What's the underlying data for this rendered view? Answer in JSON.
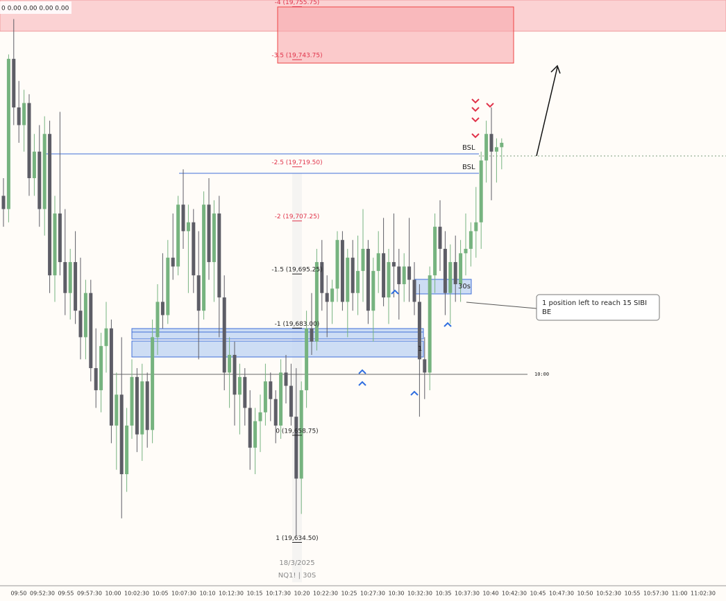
{
  "chart_data": {
    "type": "candlestick",
    "status_text": "0 0.00 0.00 0.00 0.00",
    "ylim": [
      19623.75,
      19756
    ],
    "up_color": "#76b37f",
    "down_color": "#5d5d66",
    "candles": [
      [
        19712,
        19716,
        19705,
        19709
      ],
      [
        19709,
        19744,
        19706,
        19743
      ],
      [
        19743,
        19752,
        19728,
        19732
      ],
      [
        19732,
        19738,
        19724,
        19728
      ],
      [
        19728,
        19736,
        19722,
        19733
      ],
      [
        19733,
        19735,
        19712,
        19716
      ],
      [
        19716,
        19726,
        19712,
        19722
      ],
      [
        19722,
        19728,
        19705,
        19709
      ],
      [
        19709,
        19730,
        19703,
        19726
      ],
      [
        19726,
        19729,
        19690,
        19694
      ],
      [
        19694,
        19712,
        19688,
        19708
      ],
      [
        19708,
        19731,
        19694,
        19697
      ],
      [
        19697,
        19709,
        19685,
        19690
      ],
      [
        19690,
        19700,
        19684,
        19697
      ],
      [
        19697,
        19704,
        19683,
        19686
      ],
      [
        19686,
        19698,
        19675,
        19680
      ],
      [
        19680,
        19693,
        19675,
        19690
      ],
      [
        19690,
        19693,
        19670,
        19673
      ],
      [
        19673,
        19682,
        19664,
        19668
      ],
      [
        19668,
        19681,
        19663,
        19678
      ],
      [
        19678,
        19688,
        19672,
        19682
      ],
      [
        19682,
        19684,
        19656,
        19660
      ],
      [
        19660,
        19672,
        19650,
        19667
      ],
      [
        19667,
        19680,
        19639,
        19649
      ],
      [
        19649,
        19664,
        19645,
        19660
      ],
      [
        19660,
        19675,
        19657,
        19671
      ],
      [
        19671,
        19673,
        19654,
        19658
      ],
      [
        19658,
        19674,
        19652,
        19670
      ],
      [
        19670,
        19672,
        19655,
        19659
      ],
      [
        19659,
        19684,
        19656,
        19680
      ],
      [
        19680,
        19692,
        19676,
        19688
      ],
      [
        19688,
        19699,
        19682,
        19685
      ],
      [
        19685,
        19702,
        19683,
        19698
      ],
      [
        19698,
        19708,
        19693,
        19696
      ],
      [
        19696,
        19712,
        19694,
        19710
      ],
      [
        19710,
        19718,
        19700,
        19704
      ],
      [
        19704,
        19710,
        19690,
        19706
      ],
      [
        19706,
        19709,
        19690,
        19694
      ],
      [
        19694,
        19704,
        19675,
        19686
      ],
      [
        19686,
        19713,
        19684,
        19710
      ],
      [
        19710,
        19716,
        19693,
        19697
      ],
      [
        19697,
        19711,
        19688,
        19708
      ],
      [
        19708,
        19712,
        19680,
        19689
      ],
      [
        19689,
        19694,
        19668,
        19672
      ],
      [
        19672,
        19680,
        19664,
        19676
      ],
      [
        19676,
        19679,
        19660,
        19667
      ],
      [
        19667,
        19674,
        19658,
        19671
      ],
      [
        19671,
        19673,
        19660,
        19664
      ],
      [
        19664,
        19668,
        19650,
        19655
      ],
      [
        19655,
        19664,
        19649,
        19661
      ],
      [
        19661,
        19667,
        19654,
        19663
      ],
      [
        19663,
        19674,
        19660,
        19670
      ],
      [
        19670,
        19672,
        19661,
        19666
      ],
      [
        19666,
        19668,
        19656,
        19660
      ],
      [
        19660,
        19675,
        19657,
        19672
      ],
      [
        19672,
        19676,
        19665,
        19669
      ],
      [
        19669,
        19674,
        19660,
        19662
      ],
      [
        19662,
        19673,
        19635,
        19648
      ],
      [
        19648,
        19670,
        19640,
        19668
      ],
      [
        19668,
        19686,
        19664,
        19682
      ],
      [
        19682,
        19690,
        19676,
        19679
      ],
      [
        19679,
        19700,
        19677,
        19697
      ],
      [
        19697,
        19702,
        19686,
        19690
      ],
      [
        19690,
        19694,
        19680,
        19688
      ],
      [
        19688,
        19693,
        19683,
        19691
      ],
      [
        19691,
        19704,
        19688,
        19702
      ],
      [
        19702,
        19704,
        19686,
        19688
      ],
      [
        19688,
        19700,
        19680,
        19698
      ],
      [
        19698,
        19702,
        19686,
        19690
      ],
      [
        19690,
        19703,
        19685,
        19695
      ],
      [
        19695,
        19709,
        19688,
        19700
      ],
      [
        19700,
        19702,
        19683,
        19686
      ],
      [
        19686,
        19698,
        19679,
        19695
      ],
      [
        19695,
        19704,
        19690,
        19699
      ],
      [
        19699,
        19707,
        19687,
        19689
      ],
      [
        19689,
        19700,
        19683,
        19697
      ],
      [
        19697,
        19708,
        19689,
        19696
      ],
      [
        19696,
        19700,
        19684,
        19692
      ],
      [
        19692,
        19699,
        19688,
        19696
      ],
      [
        19696,
        19707,
        19688,
        19693
      ],
      [
        19693,
        19697,
        19685,
        19688
      ],
      [
        19688,
        19692,
        19662,
        19675
      ],
      [
        19675,
        19680,
        19666,
        19672
      ],
      [
        19672,
        19696,
        19668,
        19694
      ],
      [
        19694,
        19708,
        19690,
        19705
      ],
      [
        19705,
        19711,
        19695,
        19700
      ],
      [
        19700,
        19704,
        19685,
        19690
      ],
      [
        19690,
        19701,
        19683,
        19697
      ],
      [
        19697,
        19703,
        19688,
        19692
      ],
      [
        19692,
        19702,
        19688,
        19699
      ],
      [
        19699,
        19708,
        19694,
        19700
      ],
      [
        19700,
        19706,
        19696,
        19704
      ],
      [
        19704,
        19714,
        19698,
        19706
      ],
      [
        19706,
        19722,
        19700,
        19720
      ],
      [
        19720,
        19729,
        19715,
        19726
      ],
      [
        19726,
        19732,
        19711,
        19722
      ],
      [
        19722,
        19725,
        19715,
        19723
      ],
      [
        19723,
        19725,
        19718,
        19724
      ]
    ],
    "fib_levels": [
      {
        "value": 19755.75,
        "label": "-4 (19,755.75)"
      },
      {
        "value": 19743.75,
        "label": "-3.5 (19,743.75)"
      },
      {
        "value": 19719.5,
        "label": "-2.5 (19,719.50)"
      },
      {
        "value": 19707.25,
        "label": "-2 (19,707.25)"
      },
      {
        "value": 19695.25,
        "label": "-1.5 (19,695.25)"
      },
      {
        "value": 19683,
        "label": "-1 (19,683.00)"
      },
      {
        "value": 19658.75,
        "label": "0 (19,658.75)"
      },
      {
        "value": 19634.5,
        "label": "1 (19,634.50)"
      }
    ],
    "fib_label_colors": [
      "#e0334a",
      "#e0334a",
      "#e0334a",
      "#e0334a",
      "#222222",
      "#222222",
      "#222222",
      "#222222"
    ],
    "annotations": {
      "bsl_1": "BSL",
      "bsl_2": "BSL",
      "timeframe_box": "30s",
      "count": "1",
      "session_line": "10:00",
      "callout_line1": "1 position left to reach 15 SIBI",
      "callout_line2": "BE"
    },
    "date_label": "18/3/2025",
    "symbol_label": "NQ1! | 30S",
    "time_labels": [
      "09:50",
      "09:52:30",
      "09:55",
      "09:57:30",
      "10:00",
      "10:02:30",
      "10:05",
      "10:07:30",
      "10:10",
      "10:12:30",
      "10:15",
      "10:17:30",
      "10:20",
      "10:22:30",
      "10:25",
      "10:27:30",
      "10:30",
      "10:32:30",
      "10:35",
      "10:37:30",
      "10:40",
      "10:42:30",
      "10:45",
      "10:47:30",
      "10:50",
      "10:52:30",
      "10:55",
      "10:57:30",
      "11:00",
      "11:02:30"
    ]
  }
}
